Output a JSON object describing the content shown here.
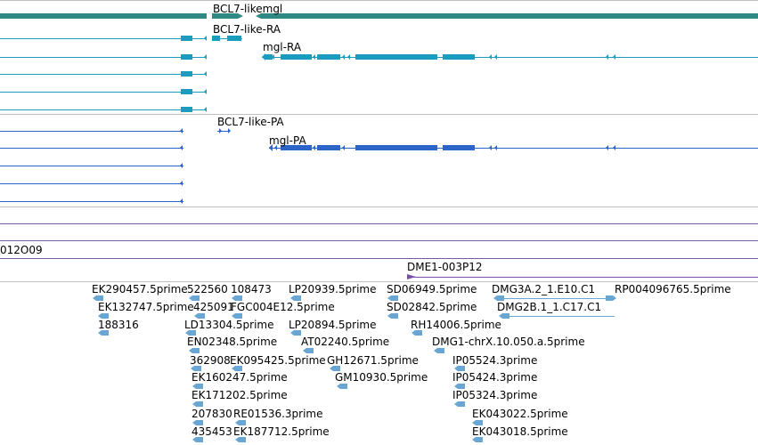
{
  "colors": {
    "gene": "#2f8a85",
    "mrna": "#1a9cbf",
    "protein": "#2d64c8",
    "divider": "#c0c0c0",
    "purple_line": "#7a5a9e",
    "dme_marker": "#7b4fb0",
    "est": "#6aa6d4"
  },
  "gene_track": {
    "label": "BCL7-likemgl"
  },
  "mrna_track": {
    "label_bcl7": "BCL7-like-RA",
    "label_mgl": "mgl-RA"
  },
  "protein_track": {
    "label_bcl7": "BCL7-like-PA",
    "label_mgl": "mgl-PA"
  },
  "clone_track": {
    "label": "012O09"
  },
  "dme_track": {
    "label": "DME1-003P12"
  },
  "est_labels": [
    "EK290457.5prime",
    "522560",
    "108473",
    "LP20939.5prime",
    "SD06949.5prime",
    "DMG3A.2_1.E10.C1",
    "RP004096765.5prime",
    "EK132747.5prime",
    "425091",
    "FGC004E12.5prime",
    "SD02842.5prime",
    "DMG2B.1_1.C17.C1",
    "188316",
    "LD13304.5prime",
    "LP20894.5prime",
    "RH14006.5prime",
    "EN02348.5prime",
    "AT02240.5prime",
    "DMG1-chrX.10.050.a.5prime",
    "362908",
    "EK095425.5prime",
    "GH12671.5prime",
    "IP05524.3prime",
    "EK160247.5prime",
    "GM10930.5prime",
    "IP05424.3prime",
    "EK171202.5prime",
    "IP05324.3prime",
    "207830",
    "RE01536.3prime",
    "EK043022.5prime",
    "435453",
    "EK187712.5prime",
    "EK043018.5prime"
  ]
}
